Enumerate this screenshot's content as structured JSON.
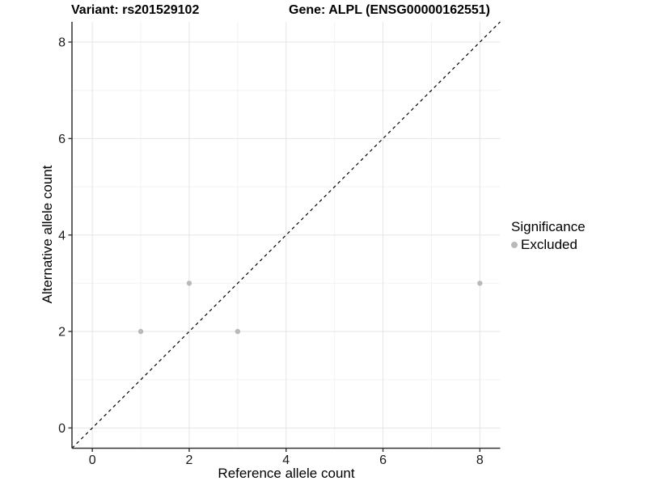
{
  "header": {
    "variant_title": "Variant: rs201529102",
    "gene_title": "Gene: ALPL (ENSG00000162551)"
  },
  "chart_data": {
    "type": "scatter",
    "xlabel": "Reference allele count",
    "ylabel": "Alternative allele count",
    "xlim": [
      -0.42,
      8.42
    ],
    "ylim": [
      -0.42,
      8.42
    ],
    "x_ticks": [
      0,
      2,
      4,
      6,
      8
    ],
    "y_ticks": [
      0,
      2,
      4,
      6,
      8
    ],
    "x_minor_ticks": [
      1,
      3,
      5,
      7
    ],
    "y_minor_ticks": [
      1,
      3,
      5,
      7
    ],
    "grid": "major+minor",
    "legend_position": "right",
    "series": [
      {
        "name": "Excluded",
        "marker": "circle",
        "color": "#b9b9b9",
        "points": [
          [
            1,
            2
          ],
          [
            2,
            3
          ],
          [
            3,
            2
          ],
          [
            8,
            3
          ]
        ]
      }
    ],
    "identity_line": {
      "style": "dashed",
      "color": "#000000",
      "from": [
        -0.42,
        -0.42
      ],
      "to": [
        8.42,
        8.42
      ]
    }
  },
  "legend": {
    "title": "Significance",
    "items": [
      {
        "label": "Excluded",
        "marker_color": "#b9b9b9"
      }
    ]
  },
  "colors": {
    "background": "#ffffff",
    "axis_line": "#333333",
    "tick_label": "#1a1a1a",
    "grid_major": "#e5e5e5",
    "grid_minor": "#f2f2f2"
  }
}
